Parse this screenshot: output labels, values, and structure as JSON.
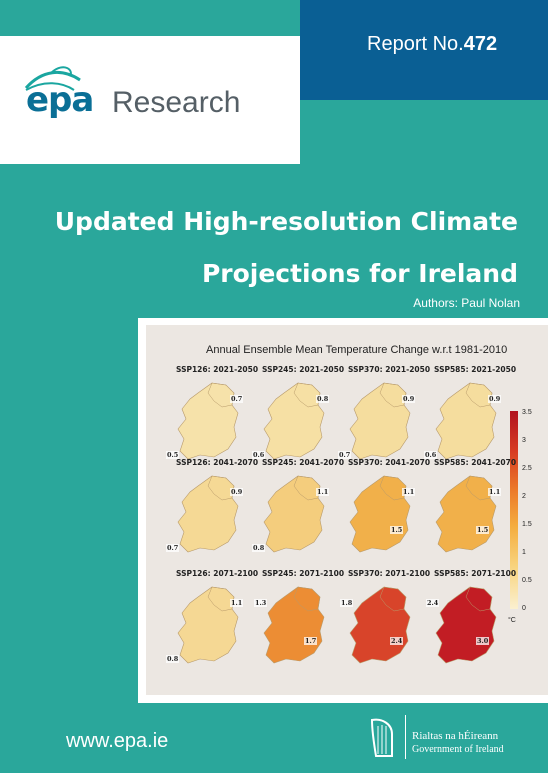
{
  "report": {
    "prefix": "Report No.",
    "number": "472"
  },
  "logo": {
    "epa": "epa",
    "research": "Research"
  },
  "title": {
    "line1": "Updated High-resolution Climate",
    "line2": "Projections for Ireland"
  },
  "authors": "Authors: Paul Nolan",
  "figure": {
    "title": "Annual Ensemble Mean Temperature Change w.r.t 1981-2010",
    "colorbar_ticks": [
      "3.5",
      "3",
      "2.5",
      "2",
      "1.5",
      "1",
      "0.5",
      "0"
    ],
    "unit": "°C",
    "panels": [
      {
        "label": "SSP126: 2021-2050",
        "values": [
          "0.7",
          "0.5"
        ],
        "fill": "#f6e2aa"
      },
      {
        "label": "SSP245: 2021-2050",
        "values": [
          "0.8",
          "0.6"
        ],
        "fill": "#f6e0a4"
      },
      {
        "label": "SSP370: 2021-2050",
        "values": [
          "0.9",
          "0.7"
        ],
        "fill": "#f5dd9e"
      },
      {
        "label": "SSP585: 2021-2050",
        "values": [
          "0.9",
          "0.6"
        ],
        "fill": "#f5dd9e"
      },
      {
        "label": "SSP126: 2041-2070",
        "values": [
          "0.9",
          "0.7"
        ],
        "fill": "#f5d995"
      },
      {
        "label": "SSP245: 2041-2070",
        "values": [
          "1.1",
          "0.8"
        ],
        "fill": "#f4cd7d"
      },
      {
        "label": "SSP370: 2041-2070",
        "values": [
          "1.1",
          "1.5"
        ],
        "fill": "#f1b04a"
      },
      {
        "label": "SSP585: 2041-2070",
        "values": [
          "1.1",
          "1.5"
        ],
        "fill": "#f1b04a"
      },
      {
        "label": "SSP126: 2071-2100",
        "values": [
          "1.1",
          "0.8"
        ],
        "fill": "#f5d894"
      },
      {
        "label": "SSP245: 2071-2100",
        "values": [
          "1.3",
          "1.7"
        ],
        "fill": "#ec8d34"
      },
      {
        "label": "SSP370: 2071-2100",
        "values": [
          "1.8",
          "2.4"
        ],
        "fill": "#d8442a"
      },
      {
        "label": "SSP585: 2071-2100",
        "values": [
          "2.4",
          "3.0"
        ],
        "fill": "#c21d24"
      }
    ]
  },
  "footer": {
    "url": "www.epa.ie",
    "gov_irish": "Rialtas na hÉireann",
    "gov_english": "Government of Ireland"
  },
  "colors": {
    "teal": "#2aa79b",
    "blue": "#0a5f94",
    "epa_blue": "#0a6f96"
  }
}
